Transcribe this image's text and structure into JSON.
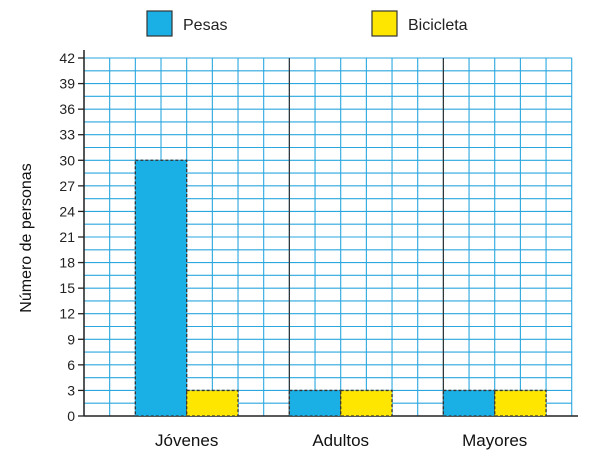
{
  "chart_data": {
    "type": "bar",
    "ylabel": "Número de personas",
    "categories": [
      "Jóvenes",
      "Adultos",
      "Mayores"
    ],
    "series": [
      {
        "name": "Pesas",
        "values": [
          30,
          3,
          3
        ],
        "color": "#1ab0e6"
      },
      {
        "name": "Bicicleta",
        "values": [
          3,
          3,
          3
        ],
        "color": "#ffe600"
      }
    ],
    "ylim": [
      0,
      42
    ],
    "yticks": [
      "0",
      "3",
      "6",
      "9",
      "12",
      "15",
      "18",
      "21",
      "24",
      "27",
      "30",
      "33",
      "36",
      "39",
      "42"
    ],
    "grid": true,
    "legend": "top",
    "grid_color": "#2aa7df"
  }
}
